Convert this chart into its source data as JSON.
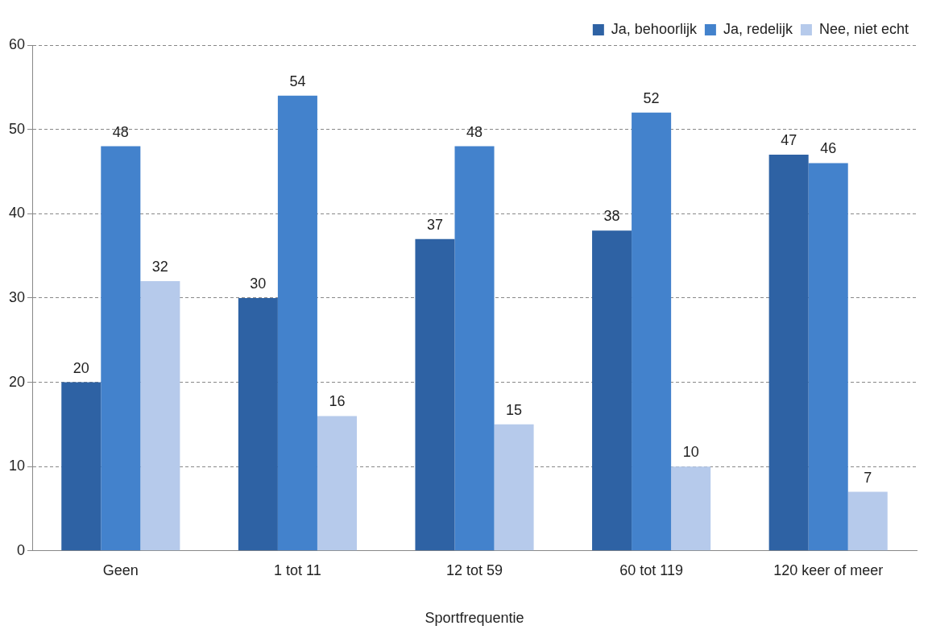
{
  "chart_data": {
    "type": "bar",
    "xlabel": "Sportfrequentie",
    "categories": [
      "Geen",
      "1 tot 11",
      "12 tot 59",
      "60 tot 119",
      "120 keer of meer"
    ],
    "series": [
      {
        "name": "Ja, behoorlijk",
        "color": "#2e62a4",
        "values": [
          20,
          30,
          37,
          38,
          47
        ]
      },
      {
        "name": "Ja, redelijk",
        "color": "#4382cc",
        "values": [
          48,
          54,
          48,
          52,
          46
        ]
      },
      {
        "name": "Nee, niet echt",
        "color": "#b6caeb",
        "values": [
          32,
          16,
          15,
          10,
          7
        ]
      }
    ],
    "ylim": [
      0,
      60
    ],
    "yticks": [
      0,
      10,
      20,
      30,
      40,
      50,
      60
    ],
    "grid": "y",
    "legend": "top right",
    "data_labels": true
  }
}
